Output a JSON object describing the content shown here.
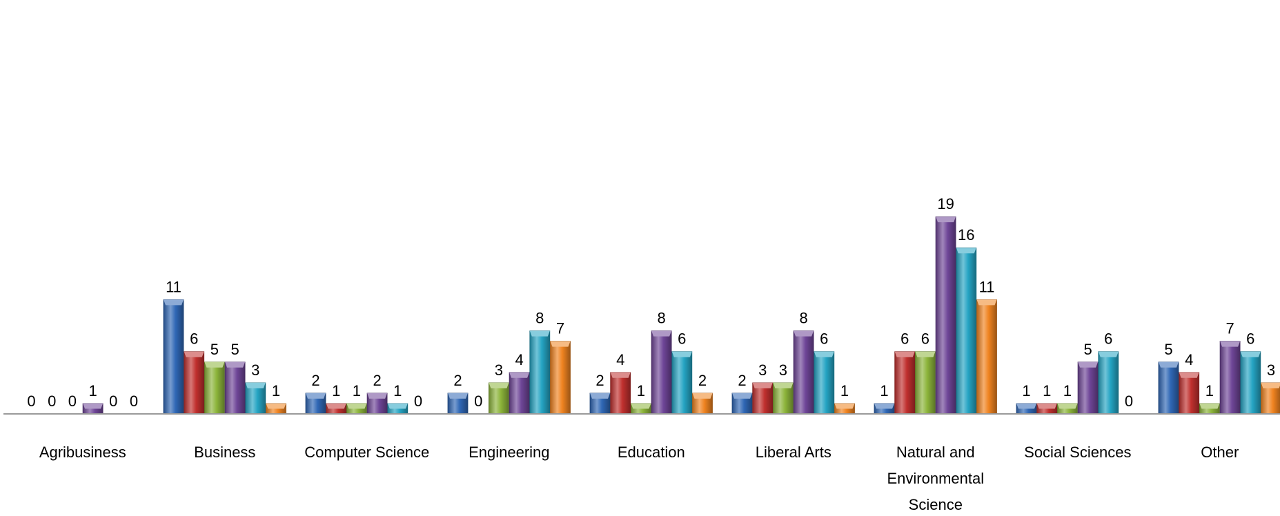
{
  "chart_data": {
    "type": "bar",
    "categories": [
      "Agribusiness",
      "Business",
      "Computer Science",
      "Engineering",
      "Education",
      "Liberal Arts",
      "Natural and Environmental Science",
      "Social Sciences",
      "Other"
    ],
    "series": [
      {
        "color": "#2F67B5",
        "values": [
          0,
          11,
          2,
          2,
          2,
          2,
          1,
          1,
          5
        ]
      },
      {
        "color": "#C0302E",
        "values": [
          0,
          6,
          1,
          0,
          4,
          3,
          6,
          1,
          4
        ]
      },
      {
        "color": "#8CB43A",
        "values": [
          0,
          5,
          1,
          3,
          1,
          3,
          6,
          1,
          1
        ]
      },
      {
        "color": "#6E4597",
        "values": [
          1,
          5,
          2,
          4,
          8,
          8,
          19,
          5,
          7
        ]
      },
      {
        "color": "#25A4C3",
        "values": [
          0,
          3,
          1,
          8,
          6,
          6,
          16,
          6,
          6
        ]
      },
      {
        "color": "#EF8320",
        "values": [
          0,
          1,
          0,
          7,
          2,
          1,
          11,
          0,
          3
        ]
      }
    ],
    "title": "",
    "xlabel": "",
    "ylabel": "",
    "ylim": [
      0,
      19
    ],
    "grid": false,
    "legend": "none",
    "data_labels": true
  }
}
